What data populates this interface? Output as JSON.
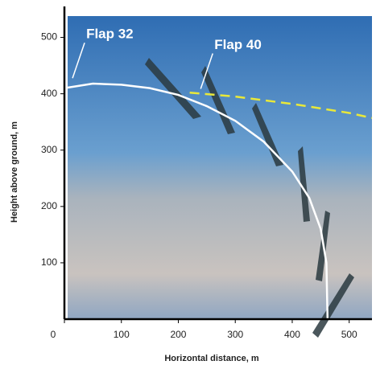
{
  "chart_data": {
    "type": "line",
    "x_label": "Horizontal distance, m",
    "y_label": "Height above ground, m",
    "xlim": [
      0,
      540
    ],
    "ylim": [
      0,
      555
    ],
    "xticks": [
      0,
      100,
      200,
      300,
      400,
      500
    ],
    "yticks": [
      100,
      200,
      300,
      400,
      500
    ],
    "series": [
      {
        "color": "#ffffff",
        "dashed": false,
        "x": [
          0,
          50,
          100,
          150,
          200,
          250,
          300,
          350,
          400,
          430,
          450,
          460,
          462
        ],
        "values": [
          410,
          418,
          416,
          410,
          398,
          378,
          352,
          315,
          262,
          215,
          160,
          100,
          0
        ]
      },
      {
        "color": "#e8e83a",
        "dashed": true,
        "x": [
          220,
          300,
          400,
          500,
          540
        ],
        "values": [
          402,
          395,
          382,
          366,
          357
        ]
      }
    ],
    "annotations": [
      {
        "text": "Flap 32",
        "x": 10,
        "y": 422
      },
      {
        "text": "Flap 40",
        "x": 235,
        "y": 403
      }
    ]
  }
}
